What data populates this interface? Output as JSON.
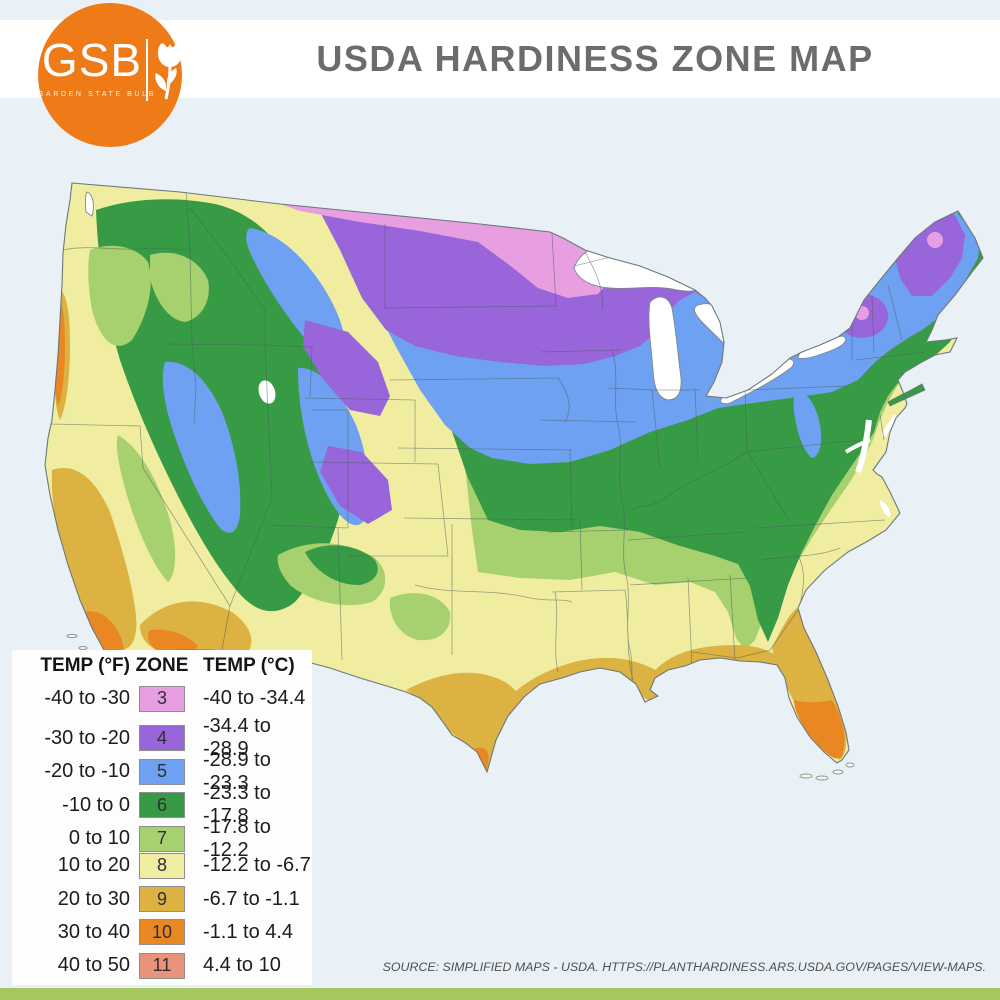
{
  "header": {
    "title": "USDA HARDINESS ZONE MAP"
  },
  "logo": {
    "abbr": "GSB",
    "tagline": "GARDEN STATE BULB",
    "brand_color": "#ee7b17"
  },
  "legend": {
    "headers": {
      "f": "TEMP (°F)",
      "zone": "ZONE",
      "c": "TEMP (°C)"
    },
    "rows": [
      {
        "f": "-40 to -30",
        "zone": "3",
        "c": "-40 to -34.4",
        "color": "#e89fe2"
      },
      {
        "f": "-30 to -20",
        "zone": "4",
        "c": "-34.4 to -28.9",
        "color": "#9865da"
      },
      {
        "f": "-20 to -10",
        "zone": "5",
        "c": "-28.9 to -23.3",
        "color": "#6fa1f3"
      },
      {
        "f": "-10 to 0",
        "zone": "6",
        "c": "-23.3 to -17.8",
        "color": "#379b46"
      },
      {
        "f": "0 to 10",
        "zone": "7",
        "c": "-17.8 to -12.2",
        "color": "#a7d06e"
      },
      {
        "f": "10 to 20",
        "zone": "8",
        "c": "-12.2 to -6.7",
        "color": "#f0eda0"
      },
      {
        "f": "20 to 30",
        "zone": "9",
        "c": "-6.7 to -1.1",
        "color": "#dcb243"
      },
      {
        "f": "30 to 40",
        "zone": "10",
        "c": "-1.1 to 4.4",
        "color": "#e98722"
      },
      {
        "f": "40 to 50",
        "zone": "11",
        "c": "4.4 to 10",
        "color": "#e9947a"
      }
    ]
  },
  "map": {
    "description": "Contiguous United States colored by USDA plant hardiness zones 3-11"
  },
  "source": {
    "text": "SOURCE: SIMPLIFIED MAPS - USDA. HTTPS://PLANTHARDINESS.ARS.USDA.GOV/PAGES/VIEW-MAPS."
  }
}
